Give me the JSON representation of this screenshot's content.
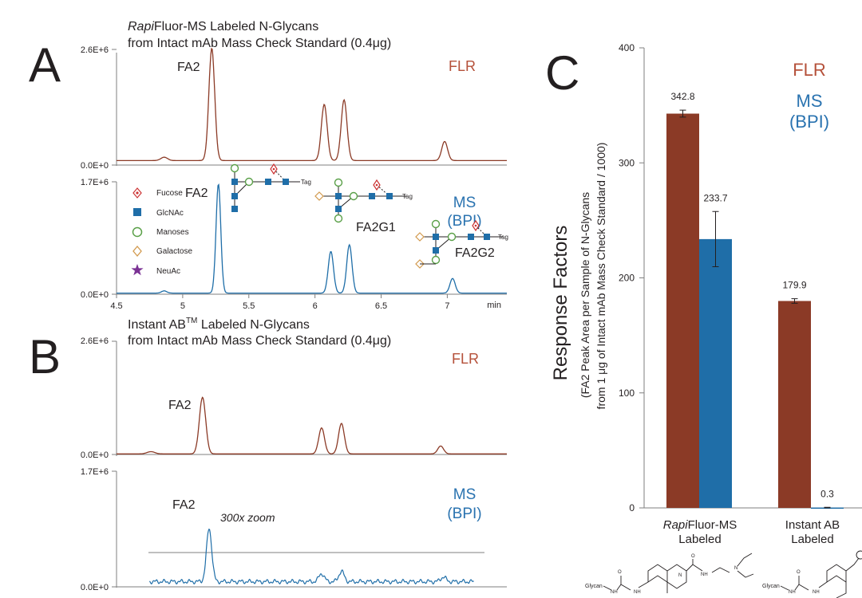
{
  "figure": {
    "panel_labels": {
      "a": "A",
      "b": "B",
      "c": "C"
    },
    "colors": {
      "flr": "#8b3a26",
      "ms": "#1f6ea8",
      "flr_text": "#b5513a",
      "ms_text": "#2a73b0",
      "axis": "#231f20",
      "gray": "#7f7f7f"
    },
    "panel_a": {
      "title": {
        "pre_italic": "Rapi",
        "pre_rest": "Fluor-MS Labeled N-Glycans",
        "line2": "from Intact mAb Mass Check Standard (0.4μg)"
      },
      "flr": {
        "ymax_label": "2.6E+6",
        "ymin_label": "0.0E+0",
        "trace_label": "FLR",
        "peak_label": "FA2"
      },
      "ms": {
        "ymax_label": "1.7E+6",
        "ymin_label": "0.0E+0",
        "trace_label_1": "MS",
        "trace_label_2": "(BPI)",
        "peak_labels": {
          "fa2": "FA2",
          "fa2g1": "FA2G1",
          "fa2g2": "FA2G2"
        },
        "tag_text": "Tag"
      },
      "legend": [
        {
          "symbol": "fucose-diamond",
          "label": "Fucose",
          "color": "#cc3333"
        },
        {
          "symbol": "square",
          "label": "GlcNAc",
          "color": "#1f6ea8"
        },
        {
          "symbol": "circle",
          "label": "Manoses",
          "color": "#5aa048"
        },
        {
          "symbol": "diamond",
          "label": "Galactose",
          "color": "#d29a4e"
        },
        {
          "symbol": "star",
          "label": "NeuAc",
          "color": "#7b3294"
        }
      ],
      "x_axis": {
        "ticks": [
          "4.5",
          "5",
          "5.5",
          "6",
          "6.5",
          "7"
        ],
        "unit": "min"
      }
    },
    "panel_b": {
      "title": {
        "line1_pre": "Instant AB",
        "line1_sup": "TM",
        "line1_post": " Labeled N-Glycans",
        "line2": "from Intact mAb Mass Check Standard (0.4μg)"
      },
      "flr": {
        "ymax_label": "2.6E+6",
        "ymin_label": "0.0E+0",
        "trace_label": "FLR",
        "peak_label": "FA2"
      },
      "ms": {
        "ymax_label": "1.7E+6",
        "ymin_label": "0.0E+0",
        "trace_label_1": "MS",
        "trace_label_2": "(BPI)",
        "peak_label": "FA2",
        "zoom_label": "300x zoom"
      }
    },
    "panel_c": {
      "legend_flr": "FLR",
      "legend_ms_1": "MS",
      "legend_ms_2": "(BPI)",
      "ylabel_main": "Response Factors",
      "ylabel_sub1": "(FA2 Peak Area per Sample of N-Glycans",
      "ylabel_sub2": "from 1 μg of Intact  mAb Mass Check Standard / 1000)",
      "group1_italic": "Rapi",
      "group1_rest": "Fluor-MS",
      "group1_line2": "Labeled",
      "group2_line1": "Instant AB",
      "group2_line2": "Labeled",
      "glycan_text": "Glycan",
      "nh_text": "NH",
      "o_text": "O",
      "n_text": "N"
    }
  },
  "chart_data": [
    {
      "type": "line",
      "title": "RapiFluor-MS Labeled N-Glycans from Intact mAb Mass Check Standard (0.4μg)",
      "xlabel": "min",
      "ylim": [
        0,
        2600000
      ],
      "xlim": [
        4.5,
        7.45
      ],
      "series": [
        {
          "name": "FLR",
          "x": [
            4.5,
            4.86,
            5.22,
            6.07,
            6.22,
            6.98
          ],
          "peaks": [
            {
              "x": 4.86,
              "height": 0.03,
              "width": 0.025
            },
            {
              "x": 5.22,
              "height": 1.0,
              "width": 0.022
            },
            {
              "x": 6.07,
              "height": 0.5,
              "width": 0.022
            },
            {
              "x": 6.22,
              "height": 0.54,
              "width": 0.022
            },
            {
              "x": 6.98,
              "height": 0.17,
              "width": 0.022
            }
          ],
          "baseline": 0.04
        }
      ]
    },
    {
      "type": "line",
      "xlabel": "min",
      "ylim": [
        0,
        1700000
      ],
      "xlim": [
        4.5,
        7.45
      ],
      "x_ticks": [
        4.5,
        5,
        5.5,
        6,
        6.5,
        7
      ],
      "series": [
        {
          "name": "MS (BPI)",
          "peaks": [
            {
              "x": 4.86,
              "height": 0.02,
              "width": 0.02
            },
            {
              "x": 5.27,
              "height": 0.97,
              "width": 0.018
            },
            {
              "x": 6.12,
              "height": 0.37,
              "width": 0.02
            },
            {
              "x": 6.26,
              "height": 0.43,
              "width": 0.02
            },
            {
              "x": 7.04,
              "height": 0.13,
              "width": 0.02
            }
          ],
          "baseline": 0.01
        }
      ]
    },
    {
      "type": "line",
      "title": "Instant AB Labeled N-Glycans from Intact mAb Mass Check Standard (0.4μg)",
      "ylim": [
        0,
        2600000
      ],
      "xlim": [
        4.5,
        7.45
      ],
      "series": [
        {
          "name": "FLR",
          "peaks": [
            {
              "x": 4.76,
              "height": 0.02,
              "width": 0.03
            },
            {
              "x": 5.15,
              "height": 0.5,
              "width": 0.024
            },
            {
              "x": 6.05,
              "height": 0.23,
              "width": 0.022
            },
            {
              "x": 6.2,
              "height": 0.27,
              "width": 0.022
            },
            {
              "x": 6.95,
              "height": 0.07,
              "width": 0.022
            }
          ],
          "baseline": 0.005
        }
      ]
    },
    {
      "type": "line",
      "ylim": [
        0,
        1700000
      ],
      "xlim": [
        4.5,
        7.45
      ],
      "series": [
        {
          "name": "MS (BPI)",
          "peaks": [
            {
              "x": 5.2,
              "height": 0.46,
              "width": 0.02
            },
            {
              "x": 6.05,
              "height": 0.07,
              "width": 0.02
            },
            {
              "x": 6.2,
              "height": 0.09,
              "width": 0.02
            },
            {
              "x": 6.97,
              "height": 0.04,
              "width": 0.02
            }
          ],
          "baseline": 0.045,
          "noise": 0.02,
          "xlim_visible": [
            4.75,
            7.2
          ]
        }
      ]
    },
    {
      "type": "bar",
      "categories": [
        "RapiFluor-MS Labeled",
        "Instant AB Labeled"
      ],
      "series": [
        {
          "name": "FLR",
          "values": [
            342.8,
            179.9
          ],
          "errors": [
            3,
            2
          ]
        },
        {
          "name": "MS (BPI)",
          "values": [
            233.7,
            0.3
          ],
          "errors": [
            24,
            0.2
          ]
        }
      ],
      "value_labels": [
        [
          "342.8",
          "179.9"
        ],
        [
          "233.7",
          "0.3"
        ]
      ],
      "ylabel": "Response Factors",
      "ylim": [
        0,
        400
      ],
      "y_ticks": [
        0,
        100,
        200,
        300,
        400
      ]
    }
  ]
}
